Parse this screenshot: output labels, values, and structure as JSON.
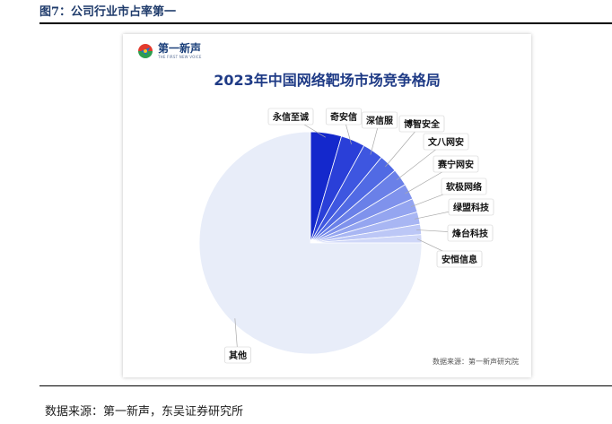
{
  "caption": "图7：公司行业市占率第一",
  "source_note": "数据来源：第一新声，东吴证券研究所",
  "logo": {
    "name": "第一新声",
    "tagline": "THE FIRST NEW VOICE"
  },
  "panel_credit": "数据来源：第一新声研究院",
  "colors": {
    "accent": "#1f3b86",
    "other_slice": "#e8edf9",
    "leader_line": "#aaaaaa"
  },
  "chart_data": {
    "type": "pie",
    "title": "2023年中国网络靶场市场竞争格局",
    "slices": [
      {
        "name": "永信至诚",
        "value": 4.5,
        "color": "#1428cc"
      },
      {
        "name": "奇安信",
        "value": 3.5,
        "color": "#2a3fd8"
      },
      {
        "name": "深信服",
        "value": 3.0,
        "color": "#3e56e0"
      },
      {
        "name": "博智安全",
        "value": 2.7,
        "color": "#516ae4"
      },
      {
        "name": "文八网安",
        "value": 2.5,
        "color": "#6a80e8"
      },
      {
        "name": "赛宁网安",
        "value": 2.3,
        "color": "#7f92ec"
      },
      {
        "name": "软极网络",
        "value": 2.0,
        "color": "#94a5f0"
      },
      {
        "name": "绿盟科技",
        "value": 1.8,
        "color": "#a8b6f3"
      },
      {
        "name": "烽台科技",
        "value": 1.5,
        "color": "#bcc7f6"
      },
      {
        "name": "安恒信息",
        "value": 1.2,
        "color": "#cfd7f8"
      },
      {
        "name": "其他",
        "value": 75.0,
        "color": "#e8edf9"
      }
    ]
  }
}
